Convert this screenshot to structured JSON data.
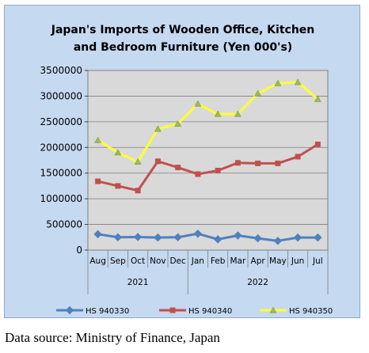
{
  "chart_data": {
    "type": "line",
    "title_lines": [
      "Japan's Imports of  Wooden  Office, Kitchen",
      "and Bedroom Furniture (Yen 000's)"
    ],
    "categories": [
      "Aug",
      "Sep",
      "Oct",
      "Nov",
      "Dec",
      "Jan",
      "Feb",
      "Mar",
      "Apr",
      "May",
      "Jun",
      "Jul"
    ],
    "year_groups": [
      {
        "label": "2021",
        "start": 0,
        "end": 4
      },
      {
        "label": "2022",
        "start": 5,
        "end": 11
      }
    ],
    "ylim": [
      0,
      3500000
    ],
    "ytick_labels": [
      "0",
      "500000",
      "1000000",
      "1500000",
      "2000000",
      "2500000",
      "3000000",
      "3500000"
    ],
    "grid": true,
    "legend_position": "bottom",
    "series": [
      {
        "name": "HS 940330",
        "color": "#4f81bd",
        "marker": "diamond",
        "values": [
          310000,
          250000,
          255000,
          245000,
          250000,
          320000,
          210000,
          285000,
          230000,
          180000,
          245000,
          245000
        ]
      },
      {
        "name": "HS 940340",
        "color": "#c0504d",
        "marker": "square",
        "values": [
          1340000,
          1250000,
          1160000,
          1730000,
          1610000,
          1480000,
          1550000,
          1700000,
          1690000,
          1690000,
          1820000,
          2060000
        ]
      },
      {
        "name": "HS 940350",
        "color": "#ffff33",
        "marker": "triangle",
        "values": [
          2140000,
          1900000,
          1720000,
          2360000,
          2460000,
          2850000,
          2650000,
          2650000,
          3050000,
          3250000,
          3270000,
          2940000
        ]
      }
    ]
  },
  "source_note": "Data source: Ministry of Finance, Japan"
}
